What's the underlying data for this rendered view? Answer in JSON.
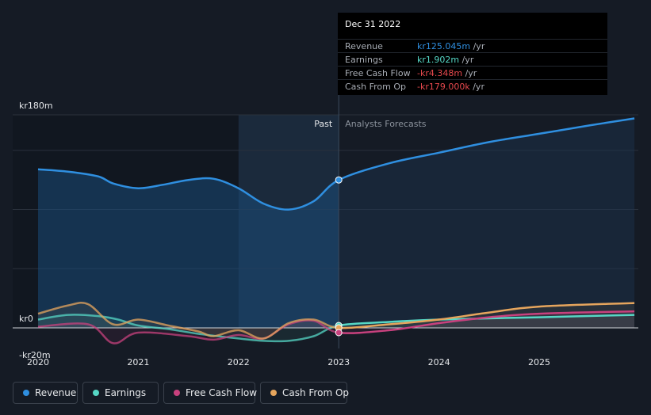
{
  "colors": {
    "revenue": "#2f8fe0",
    "earnings": "#56d7c5",
    "free_cash_flow": "#c8417e",
    "cash_from_op": "#e6a55d"
  },
  "tooltip": {
    "date": "Dec 31 2022",
    "rows": [
      {
        "label": "Revenue",
        "value": "kr125.045m",
        "unit": " /yr",
        "color": "#2f8fe0"
      },
      {
        "label": "Earnings",
        "value": "kr1.902m",
        "unit": " /yr",
        "color": "#56d7c5"
      },
      {
        "label": "Free Cash Flow",
        "value": "-kr4.348m",
        "unit": " /yr",
        "color": "#e5484d"
      },
      {
        "label": "Cash From Op",
        "value": "-kr179.000k",
        "unit": " /yr",
        "color": "#e5484d"
      }
    ]
  },
  "legend": [
    {
      "label": "Revenue",
      "color": "#2f8fe0"
    },
    {
      "label": "Earnings",
      "color": "#56d7c5"
    },
    {
      "label": "Free Cash Flow",
      "color": "#c8417e"
    },
    {
      "label": "Cash From Op",
      "color": "#e6a55d"
    }
  ],
  "chart_data": {
    "type": "line",
    "title": "",
    "xlabel": "",
    "ylabel": "",
    "ylim": [
      -20,
      180
    ],
    "xlim": [
      2019.75,
      2025.95
    ],
    "y_tick_labels": [
      {
        "label": "kr180m",
        "value": 180
      },
      {
        "label": "kr0",
        "value": 0
      },
      {
        "label": "-kr20m",
        "value": -20
      }
    ],
    "x_ticks": [
      "2020",
      "2021",
      "2022",
      "2023",
      "2024",
      "2025"
    ],
    "divider_x": 2023.0,
    "highlight_range": [
      2022.0,
      2023.0
    ],
    "region_labels": {
      "past": "Past",
      "forecast": "Analysts Forecasts"
    },
    "series": [
      {
        "name": "Revenue",
        "key": "revenue",
        "area": true,
        "x": [
          2020.0,
          2020.3,
          2020.6,
          2020.75,
          2021.0,
          2021.25,
          2021.5,
          2021.75,
          2022.0,
          2022.25,
          2022.5,
          2022.75,
          2023.0,
          2023.5,
          2024.0,
          2024.5,
          2025.0,
          2025.5,
          2025.95
        ],
        "values": [
          134,
          132,
          128,
          122,
          118,
          121,
          125,
          126,
          118,
          105,
          100,
          107,
          125,
          139,
          148,
          157,
          164,
          171,
          177
        ]
      },
      {
        "name": "Earnings",
        "key": "earnings",
        "x": [
          2020.0,
          2020.3,
          2020.6,
          2020.8,
          2021.0,
          2021.3,
          2021.6,
          2022.0,
          2022.25,
          2022.5,
          2022.75,
          2023.0,
          2023.5,
          2024.0,
          2025.0,
          2025.95
        ],
        "values": [
          7,
          11,
          10,
          7,
          2,
          -1,
          -5,
          -9,
          -11,
          -11,
          -7,
          2,
          5,
          7,
          9,
          11
        ]
      },
      {
        "name": "Free Cash Flow",
        "key": "free_cash_flow",
        "x": [
          2020.0,
          2020.5,
          2020.75,
          2021.0,
          2021.5,
          2021.75,
          2022.0,
          2022.25,
          2022.5,
          2022.75,
          2023.0,
          2023.5,
          2024.0,
          2024.5,
          2025.0,
          2025.95
        ],
        "values": [
          1,
          3,
          -13,
          -4,
          -7,
          -10,
          -6,
          -9,
          3,
          6,
          -4,
          -2,
          4,
          9,
          12,
          14
        ]
      },
      {
        "name": "Cash From Op",
        "key": "cash_from_op",
        "x": [
          2020.0,
          2020.3,
          2020.5,
          2020.75,
          2021.0,
          2021.3,
          2021.6,
          2021.75,
          2022.0,
          2022.25,
          2022.5,
          2022.75,
          2023.0,
          2023.5,
          2024.0,
          2024.5,
          2025.0,
          2025.95
        ],
        "values": [
          12,
          19,
          20,
          3,
          7,
          2,
          -3,
          -7,
          -2,
          -9,
          4,
          7,
          0,
          3,
          7,
          13,
          18,
          21
        ]
      }
    ],
    "marker_x": 2023.0,
    "marker_values": {
      "revenue": 125,
      "earnings": 2,
      "free_cash_flow": -4,
      "cash_from_op": 0
    }
  }
}
